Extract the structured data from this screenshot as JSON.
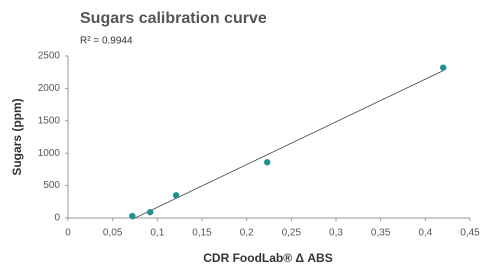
{
  "chart_data": {
    "type": "scatter",
    "title": "Sugars calibration curve",
    "subtitle": "R² = 0.9944",
    "x_label": "CDR FoodLab® Δ ABS",
    "y_label": "Sugars (ppm)",
    "color": "#1f8f8f",
    "trendline": true,
    "x": [
      0.072,
      0.092,
      0.121,
      0.223,
      0.42
    ],
    "values": [
      30,
      90,
      350,
      860,
      2320
    ],
    "xlim": [
      0,
      0.45
    ],
    "xticks": [
      0,
      {
        "value": 0.05,
        "label": "0,05"
      },
      {
        "value": 0.1,
        "label": "0,1"
      },
      {
        "value": 0.15,
        "label": "0,15"
      },
      {
        "value": 0.2,
        "label": "0,2"
      },
      {
        "value": 0.25,
        "label": "0,25"
      },
      {
        "value": 0.3,
        "label": "0,3"
      },
      {
        "value": 0.35,
        "label": "0,35"
      },
      {
        "value": 0.4,
        "label": "0,4"
      },
      {
        "value": 0.45,
        "label": "0,45"
      }
    ],
    "ylim": [
      0,
      2500
    ],
    "yticks": [
      0,
      500,
      1000,
      1500,
      2000,
      2500
    ]
  }
}
